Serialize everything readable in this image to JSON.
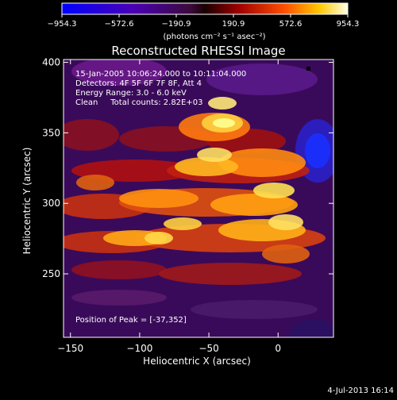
{
  "chart_data": {
    "type": "heatmap",
    "title": "Reconstructed RHESSI Image",
    "xlabel": "Heliocentric X (arcsec)",
    "ylabel": "Heliocentric Y (arcsec)",
    "xlim": [
      -155,
      40
    ],
    "ylim": [
      205,
      402
    ],
    "x_ticks": [
      -150,
      -100,
      -50,
      0
    ],
    "y_ticks": [
      250,
      300,
      350,
      400
    ],
    "colorbar": {
      "range": [
        -954.3,
        954.3
      ],
      "ticks": [
        "-954.3",
        "-572.6",
        "-190.9",
        "190.9",
        "572.6",
        "954.3"
      ],
      "unit_label": "(photons cm⁻² s⁻¹ asec⁻²)"
    },
    "annotations": [
      "15-Jan-2005 10:06:24.000 to 10:11:04.000",
      "Detectors: 4F 5F 6F 7F 8F, Att 4",
      "Energy Range: 3.0 - 6.0 keV",
      "Clean     Total counts: 2.82E+03"
    ],
    "peak_text": "Position of Peak = [-37,352]",
    "peak_position": [
      -37,
      352
    ],
    "timestamp": "4-Jul-2013 16:14",
    "colors": {
      "axes": "#ffffff",
      "background": "#000000"
    }
  }
}
